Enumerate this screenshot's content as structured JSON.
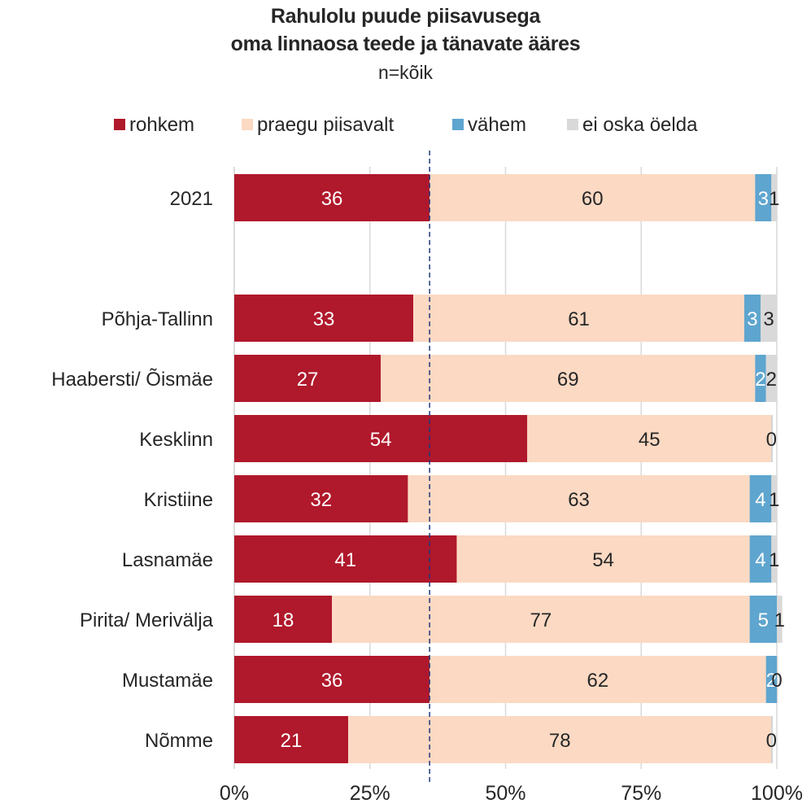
{
  "chart_data": {
    "type": "bar",
    "orientation": "horizontal",
    "stacked": "percent",
    "title": "Rahulolu puude piisavusega",
    "title_line2": "oma  linnaosa teede ja tänavate ääres",
    "subtitle": "n=kõik",
    "legend_position": "top",
    "categories": [
      "2021",
      "",
      "Põhja-Tallinn",
      "Haabersti/ Õismäe",
      "Kesklinn",
      "Kristiine",
      "Lasnamäe",
      "Pirita/ Merivälja",
      "Mustamäe",
      "Nõmme"
    ],
    "series": [
      {
        "name": "rohkem",
        "color": "#b0182b",
        "label_color": "#ffffff",
        "values": [
          36,
          null,
          33,
          27,
          54,
          32,
          41,
          18,
          36,
          21
        ]
      },
      {
        "name": "praegu piisavalt",
        "color": "#fbd9c3",
        "label_color": "#262626",
        "values": [
          60,
          null,
          61,
          69,
          45,
          63,
          54,
          77,
          62,
          78
        ]
      },
      {
        "name": "vähem",
        "color": "#5ea5cf",
        "label_color": "#ffffff",
        "values": [
          3,
          null,
          3,
          2,
          0,
          4,
          4,
          5,
          2,
          0
        ]
      },
      {
        "name": "ei oska öelda",
        "color": "#d9d9d9",
        "label_color": "#262626",
        "values": [
          1,
          null,
          3,
          2,
          0,
          1,
          1,
          1,
          0,
          0
        ]
      }
    ],
    "x_ticks": [
      "0%",
      "25%",
      "50%",
      "75%",
      "100%"
    ],
    "xlim": [
      0,
      100
    ],
    "grid": true,
    "reference_line": {
      "value": 36,
      "style": "dashed",
      "color": "#1f3a7a"
    }
  }
}
